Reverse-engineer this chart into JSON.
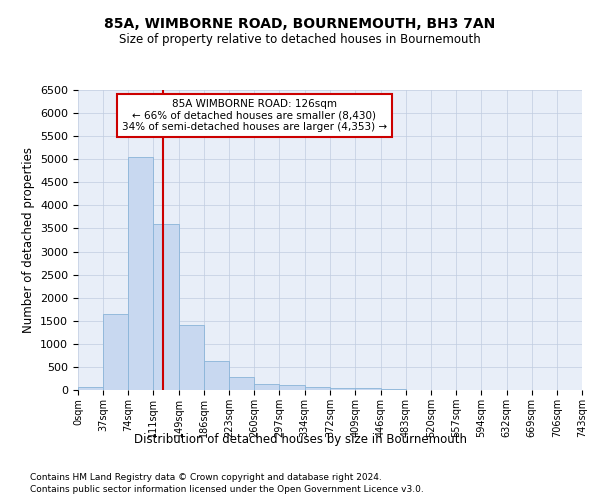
{
  "title1": "85A, WIMBORNE ROAD, BOURNEMOUTH, BH3 7AN",
  "title2": "Size of property relative to detached houses in Bournemouth",
  "xlabel": "Distribution of detached houses by size in Bournemouth",
  "ylabel": "Number of detached properties",
  "bin_edges": [
    0,
    37,
    74,
    111,
    149,
    186,
    223,
    260,
    297,
    334,
    372,
    409,
    446,
    483,
    520,
    557,
    594,
    632,
    669,
    706,
    743
  ],
  "bar_heights": [
    75,
    1650,
    5050,
    3600,
    1400,
    620,
    290,
    140,
    100,
    75,
    50,
    50,
    30,
    0,
    0,
    0,
    0,
    0,
    0,
    0
  ],
  "bar_color": "#c8d8f0",
  "bar_edgecolor": "#8ab4d8",
  "vline_x": 126,
  "vline_color": "#cc0000",
  "annotation_line1": "85A WIMBORNE ROAD: 126sqm",
  "annotation_line2": "← 66% of detached houses are smaller (8,430)",
  "annotation_line3": "34% of semi-detached houses are larger (4,353) →",
  "annotation_box_edgecolor": "#cc0000",
  "annotation_bg": "white",
  "ylim_max": 6500,
  "yticks": [
    0,
    500,
    1000,
    1500,
    2000,
    2500,
    3000,
    3500,
    4000,
    4500,
    5000,
    5500,
    6000,
    6500
  ],
  "tick_labels": [
    "0sqm",
    "37sqm",
    "74sqm",
    "111sqm",
    "149sqm",
    "186sqm",
    "223sqm",
    "260sqm",
    "297sqm",
    "334sqm",
    "372sqm",
    "409sqm",
    "446sqm",
    "483sqm",
    "520sqm",
    "557sqm",
    "594sqm",
    "632sqm",
    "669sqm",
    "706sqm",
    "743sqm"
  ],
  "footer1": "Contains HM Land Registry data © Crown copyright and database right 2024.",
  "footer2": "Contains public sector information licensed under the Open Government Licence v3.0.",
  "plot_bg_color": "#e8eef8",
  "grid_color": "#c0cce0",
  "xlim_max": 743
}
